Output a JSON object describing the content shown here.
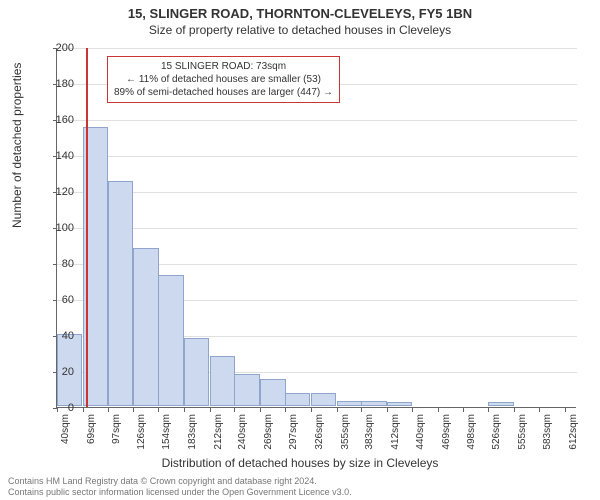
{
  "title": "15, SLINGER ROAD, THORNTON-CLEVELEYS, FY5 1BN",
  "subtitle": "Size of property relative to detached houses in Cleveleys",
  "ylabel": "Number of detached properties",
  "xlabel": "Distribution of detached houses by size in Cleveleys",
  "footer_line1": "Contains HM Land Registry data © Crown copyright and database right 2024.",
  "footer_line2": "Contains public sector information licensed under the Open Government Licence v3.0.",
  "note": {
    "line1": "15 SLINGER ROAD: 73sqm",
    "line2": "← 11% of detached houses are smaller (53)",
    "line3": "89% of semi-detached houses are larger (447) →"
  },
  "chart": {
    "type": "histogram",
    "background_color": "#ffffff",
    "grid_color": "#e0e0e0",
    "axis_color": "#666666",
    "bar_fill": "#cdd9ef",
    "bar_border": "#8fa5cc",
    "ref_line_color": "#cc3333",
    "ref_line_x": 73,
    "ylim": [
      0,
      200
    ],
    "ytick_step": 20,
    "xlim": [
      40,
      626
    ],
    "xtick_start": 40,
    "xtick_step": 28.6,
    "xtick_count": 21,
    "xtick_suffix": "sqm",
    "bar_width_units": 28.6,
    "bars": [
      {
        "x": 40,
        "h": 40
      },
      {
        "x": 69,
        "h": 155
      },
      {
        "x": 97,
        "h": 125
      },
      {
        "x": 126,
        "h": 88
      },
      {
        "x": 154,
        "h": 73
      },
      {
        "x": 183,
        "h": 38
      },
      {
        "x": 212,
        "h": 28
      },
      {
        "x": 240,
        "h": 18
      },
      {
        "x": 269,
        "h": 15
      },
      {
        "x": 297,
        "h": 7
      },
      {
        "x": 326,
        "h": 7
      },
      {
        "x": 355,
        "h": 3
      },
      {
        "x": 383,
        "h": 3
      },
      {
        "x": 412,
        "h": 2
      },
      {
        "x": 440,
        "h": 0
      },
      {
        "x": 469,
        "h": 0
      },
      {
        "x": 498,
        "h": 0
      },
      {
        "x": 526,
        "h": 2
      },
      {
        "x": 555,
        "h": 0
      },
      {
        "x": 583,
        "h": 0
      },
      {
        "x": 612,
        "h": 0
      }
    ],
    "title_fontsize": 13,
    "subtitle_fontsize": 12,
    "label_fontsize": 12,
    "tick_fontsize": 11,
    "note_fontsize": 10
  }
}
